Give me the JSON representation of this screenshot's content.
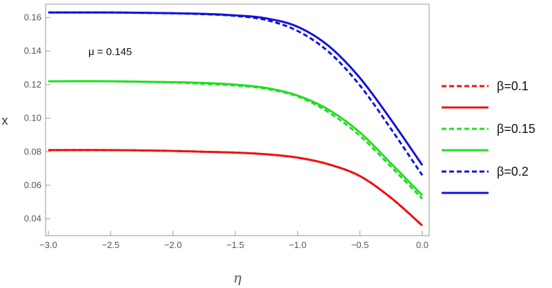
{
  "chart_data": {
    "type": "line",
    "xlabel": "η",
    "ylabel": "x",
    "xlim": [
      -3.0,
      0.0
    ],
    "ylim": [
      0.03,
      0.168
    ],
    "x_ticks": [
      -3.0,
      -2.5,
      -2.0,
      -1.5,
      -1.0,
      -0.5,
      0.0
    ],
    "x_tick_labels": [
      "−3.0",
      "−2.5",
      "−2.0",
      "−1.5",
      "−1.0",
      "−0.5",
      "0.0"
    ],
    "y_ticks": [
      0.04,
      0.06,
      0.08,
      0.1,
      0.12,
      0.14,
      0.16
    ],
    "y_tick_labels": [
      "0.04",
      "0.06",
      "0.08",
      "0.10",
      "0.12",
      "0.14",
      "0.16"
    ],
    "grid": false,
    "legend_position": "right",
    "annotation": "μ = 0.145",
    "x": [
      -3.0,
      -2.5,
      -2.0,
      -1.75,
      -1.5,
      -1.25,
      -1.0,
      -0.75,
      -0.5,
      -0.25,
      0.0
    ],
    "series": [
      {
        "name": "β=0.1",
        "color": "#ee1111",
        "dash": true,
        "values": [
          0.081,
          0.081,
          0.0805,
          0.08,
          0.0795,
          0.0785,
          0.0765,
          0.0725,
          0.0655,
          0.0525,
          0.036
        ]
      },
      {
        "name": "",
        "color": "#ee1111",
        "dash": false,
        "values": [
          0.081,
          0.081,
          0.0805,
          0.08,
          0.0795,
          0.0785,
          0.0765,
          0.0725,
          0.0655,
          0.0525,
          0.036
        ]
      },
      {
        "name": "β=0.15",
        "color": "#22dd22",
        "dash": true,
        "values": [
          0.122,
          0.122,
          0.1213,
          0.1205,
          0.1195,
          0.1175,
          0.113,
          0.1035,
          0.0895,
          0.071,
          0.052
        ]
      },
      {
        "name": "",
        "color": "#22dd22",
        "dash": false,
        "values": [
          0.122,
          0.122,
          0.1215,
          0.121,
          0.12,
          0.118,
          0.1135,
          0.105,
          0.0915,
          0.073,
          0.054
        ]
      },
      {
        "name": "β=0.2",
        "color": "#1111dd",
        "dash": true,
        "values": [
          0.163,
          0.163,
          0.1625,
          0.162,
          0.161,
          0.1585,
          0.152,
          0.1395,
          0.1195,
          0.0935,
          0.066
        ]
      },
      {
        "name": "",
        "color": "#1111dd",
        "dash": false,
        "values": [
          0.163,
          0.163,
          0.1626,
          0.1622,
          0.1613,
          0.1595,
          0.1545,
          0.143,
          0.124,
          0.099,
          0.072
        ]
      }
    ]
  }
}
